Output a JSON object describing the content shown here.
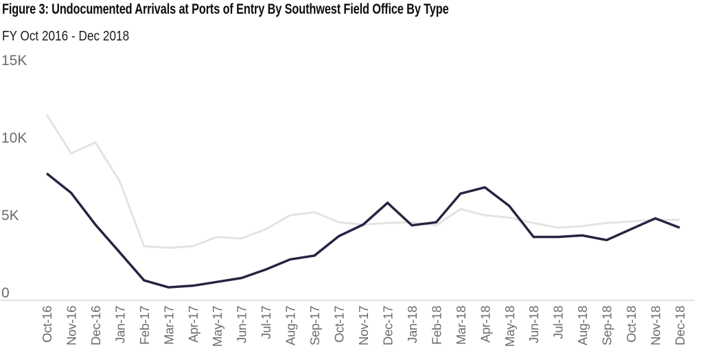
{
  "figure": {
    "title": "Figure 3: Undocumented Arrivals at Ports of Entry By Southwest Field Office By Type",
    "subtitle": "FY Oct 2016 - Dec 2018"
  },
  "colors": {
    "title_text": "#0d0d0d",
    "subtitle_text": "#1b1b1b",
    "axis_label_text": "#6b6b6b",
    "axis_line": "#d9d9d9",
    "series_light": "#e3e3e3",
    "series_dark": "#272440"
  },
  "chart_data": {
    "type": "line",
    "title": "Figure 3: Undocumented Arrivals at Ports of Entry By Southwest Field Office By Type",
    "subtitle": "FY Oct 2016 - Dec 2018",
    "xlabel": "",
    "ylabel": "",
    "ylim": [
      0,
      15000
    ],
    "grid": false,
    "legend_position": "none",
    "y_ticks": [
      {
        "label": "15K",
        "value": 15000
      },
      {
        "label": "10K",
        "value": 10000
      },
      {
        "label": "5K",
        "value": 5000
      },
      {
        "label": "0",
        "value": 0
      }
    ],
    "categories": [
      "Oct-16",
      "Nov-16",
      "Dec-16",
      "Jan-17",
      "Feb-17",
      "Mar-17",
      "Apr-17",
      "May-17",
      "Jun-17",
      "Jul-17",
      "Aug-17",
      "Sep-17",
      "Oct-17",
      "Nov-17",
      "Dec-17",
      "Jan-18",
      "Feb-18",
      "Mar-18",
      "Apr-18",
      "May-18",
      "Jun-18",
      "Jul-18",
      "Aug-18",
      "Sep-18",
      "Oct-18",
      "Nov-18",
      "Dec-18"
    ],
    "series": [
      {
        "name": "light-gray-line",
        "color": "#e3e3e3",
        "stroke_width": 3,
        "values": [
          11500,
          9000,
          9700,
          7200,
          3000,
          2900,
          3000,
          3600,
          3500,
          4100,
          5000,
          5200,
          4550,
          4400,
          4500,
          4550,
          4350,
          5400,
          5000,
          4850,
          4500,
          4200,
          4300,
          4500,
          4600,
          4700,
          4700
        ]
      },
      {
        "name": "dark-navy-line",
        "color": "#272440",
        "stroke_width": 3.5,
        "values": [
          7700,
          6450,
          4400,
          2600,
          800,
          350,
          450,
          700,
          950,
          1500,
          2150,
          2400,
          3650,
          4400,
          5800,
          4350,
          4550,
          6400,
          6800,
          5600,
          3600,
          3600,
          3700,
          3400,
          4100,
          4800,
          4200
        ]
      }
    ]
  }
}
